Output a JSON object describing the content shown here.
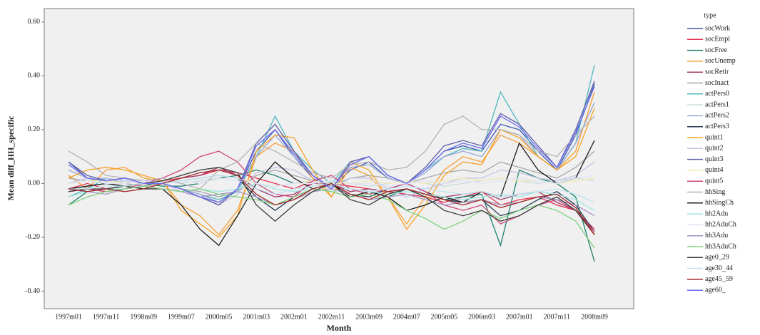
{
  "chart_data": {
    "type": "line",
    "x_label": "Month",
    "y_label": "Mean diff_HH_specific",
    "legend_title": "type",
    "categories": [
      "1997m01",
      null,
      "1997m11",
      null,
      "1998m09",
      null,
      "1999m07",
      null,
      "2000m05",
      null,
      "2001m03",
      null,
      "2002m01",
      null,
      "2002m11",
      null,
      "2003m09",
      null,
      "2004m07",
      null,
      "2005m05",
      null,
      "2006m03",
      null,
      "2007m01",
      null,
      "2007m11",
      null,
      "2008m09"
    ],
    "ylim": [
      -0.465,
      0.65
    ],
    "yticks": [
      {
        "value": -0.4,
        "label": "-0.40"
      },
      {
        "value": -0.2,
        "label": "-0.20"
      },
      {
        "value": 0,
        "label": "0.00"
      },
      {
        "value": 0.2,
        "label": "0.20"
      },
      {
        "value": 0.4,
        "label": "0.40"
      },
      {
        "value": 0.6,
        "label": "0.60"
      }
    ],
    "grid": false,
    "series": [
      {
        "name": "socWork",
        "color": "#3e58ac",
        "values": [
          0.08,
          0.02,
          0.01,
          0.02,
          0.01,
          0.0,
          -0.02,
          -0.05,
          -0.08,
          -0.02,
          0.12,
          0.2,
          0.1,
          0.02,
          -0.02,
          0.05,
          0.08,
          0.02,
          0.0,
          0.05,
          0.12,
          0.14,
          0.12,
          0.22,
          0.2,
          0.12,
          0.05,
          0.18,
          0.37
        ]
      },
      {
        "name": "socEmpl",
        "color": "#e6314e",
        "values": [
          -0.02,
          0.0,
          -0.02,
          -0.01,
          0.0,
          0.01,
          0.02,
          0.03,
          0.05,
          0.04,
          0.02,
          0.0,
          -0.02,
          0.01,
          0.0,
          -0.01,
          -0.02,
          -0.03,
          -0.04,
          -0.05,
          -0.07,
          -0.05,
          -0.03,
          -0.08,
          -0.06,
          -0.05,
          -0.08,
          -0.1,
          -0.17
        ]
      },
      {
        "name": "socFree",
        "color": "#1d7f6e",
        "values": [
          -0.08,
          -0.03,
          -0.02,
          -0.01,
          0.0,
          -0.01,
          -0.01,
          0.0,
          0.02,
          0.03,
          0.05,
          0.03,
          0.0,
          0.01,
          0.0,
          -0.02,
          -0.03,
          -0.05,
          -0.02,
          -0.04,
          -0.06,
          -0.05,
          -0.04,
          -0.23,
          0.05,
          0.02,
          0.0,
          -0.05,
          -0.29
        ]
      },
      {
        "name": "socUnemp",
        "color": "#f5a13a",
        "values": [
          0.03,
          -0.02,
          0.05,
          0.06,
          0.02,
          0.01,
          -0.08,
          -0.12,
          -0.19,
          -0.1,
          0.1,
          0.15,
          0.12,
          0.02,
          -0.05,
          0.06,
          0.03,
          -0.05,
          -0.15,
          -0.05,
          0.05,
          0.1,
          0.08,
          0.18,
          0.15,
          0.1,
          0.05,
          0.12,
          0.34
        ]
      },
      {
        "name": "socRetir",
        "color": "#a3396b",
        "values": [
          -0.03,
          -0.02,
          -0.03,
          -0.02,
          -0.01,
          0.0,
          0.02,
          0.03,
          0.06,
          0.03,
          -0.02,
          -0.05,
          -0.04,
          0.0,
          0.0,
          -0.03,
          -0.02,
          -0.03,
          -0.02,
          -0.04,
          -0.05,
          -0.04,
          -0.03,
          -0.06,
          -0.04,
          -0.03,
          -0.07,
          -0.1,
          -0.19
        ]
      },
      {
        "name": "socInact",
        "color": "#a8a8a8",
        "values": [
          0.02,
          0.01,
          0.02,
          0.0,
          -0.01,
          0.0,
          -0.02,
          -0.03,
          -0.05,
          -0.03,
          0.03,
          0.05,
          0.03,
          0.01,
          -0.01,
          0.02,
          0.03,
          0.02,
          0.0,
          0.02,
          0.04,
          0.05,
          0.04,
          0.08,
          0.06,
          0.04,
          0.02,
          0.06,
          0.12
        ]
      },
      {
        "name": "actPers0",
        "color": "#4fb8c0",
        "values": [
          -0.05,
          -0.02,
          0.02,
          0.01,
          0.0,
          0.0,
          -0.02,
          -0.04,
          -0.06,
          -0.03,
          0.1,
          0.25,
          0.12,
          0.05,
          0.0,
          0.08,
          0.1,
          0.03,
          0.0,
          0.05,
          0.1,
          0.13,
          0.12,
          0.34,
          0.22,
          0.1,
          0.05,
          0.15,
          0.44
        ]
      },
      {
        "name": "actPers1",
        "color": "#c9dbe0",
        "values": [
          0.0,
          0.01,
          0.0,
          0.01,
          0.0,
          0.01,
          0.0,
          0.01,
          0.02,
          0.01,
          0.0,
          -0.01,
          0.0,
          0.01,
          0.0,
          0.0,
          -0.01,
          0.0,
          0.01,
          0.0,
          -0.01,
          0.0,
          0.01,
          0.02,
          0.01,
          0.0,
          0.01,
          0.02,
          0.01
        ]
      },
      {
        "name": "actPers2",
        "color": "#9aa7d6",
        "values": [
          0.05,
          0.02,
          0.01,
          0.02,
          0.0,
          0.0,
          -0.02,
          -0.04,
          -0.07,
          -0.02,
          0.1,
          0.18,
          0.1,
          0.03,
          -0.01,
          0.06,
          0.07,
          0.02,
          0.0,
          0.04,
          0.1,
          0.12,
          0.1,
          0.2,
          0.18,
          0.1,
          0.05,
          0.15,
          0.3
        ]
      },
      {
        "name": "actPers3",
        "color": "#2a3a55",
        "values": [
          -0.02,
          -0.01,
          0.0,
          -0.01,
          0.0,
          0.0,
          0.01,
          0.02,
          0.03,
          0.02,
          -0.05,
          -0.1,
          -0.05,
          -0.02,
          0.0,
          -0.04,
          -0.05,
          -0.02,
          0.0,
          -0.03,
          -0.06,
          -0.07,
          -0.06,
          -0.12,
          -0.1,
          -0.06,
          -0.03,
          -0.08,
          -0.18
        ]
      },
      {
        "name": "quint1",
        "color": "#f6a323",
        "values": [
          0.02,
          0.05,
          0.06,
          0.05,
          0.03,
          0.01,
          -0.1,
          -0.15,
          -0.2,
          -0.12,
          0.12,
          0.18,
          0.17,
          0.05,
          -0.05,
          0.08,
          0.05,
          -0.05,
          -0.17,
          -0.08,
          0.03,
          0.08,
          0.07,
          0.2,
          0.17,
          0.1,
          0.05,
          0.1,
          0.28
        ]
      },
      {
        "name": "quint2",
        "color": "#c4c3e6",
        "values": [
          0.0,
          0.02,
          0.02,
          0.01,
          0.0,
          0.0,
          -0.03,
          -0.05,
          -0.08,
          -0.04,
          0.04,
          0.06,
          0.05,
          0.01,
          -0.02,
          0.02,
          0.02,
          -0.02,
          -0.05,
          -0.02,
          0.0,
          0.02,
          0.02,
          0.05,
          0.04,
          0.02,
          0.01,
          0.03,
          0.08
        ]
      },
      {
        "name": "quint3",
        "color": "#5d5fa8",
        "values": [
          0.08,
          0.03,
          0.01,
          0.02,
          0.0,
          0.0,
          -0.02,
          -0.05,
          -0.08,
          -0.02,
          0.15,
          0.22,
          0.12,
          0.03,
          -0.02,
          0.08,
          0.1,
          0.03,
          0.0,
          0.06,
          0.14,
          0.16,
          0.14,
          0.26,
          0.22,
          0.14,
          0.06,
          0.2,
          0.38
        ]
      },
      {
        "name": "quint4",
        "color": "#f1e9b0",
        "values": [
          0.0,
          0.01,
          0.01,
          0.0,
          0.01,
          0.0,
          0.01,
          0.02,
          0.03,
          0.02,
          0.0,
          -0.01,
          0.0,
          0.01,
          0.0,
          0.0,
          0.01,
          0.0,
          0.01,
          0.0,
          0.01,
          0.02,
          0.01,
          0.02,
          0.01,
          0.01,
          0.0,
          0.01,
          0.02
        ]
      },
      {
        "name": "quint5",
        "color": "#d1467b",
        "values": [
          -0.03,
          -0.02,
          -0.03,
          -0.02,
          0.0,
          0.02,
          0.05,
          0.1,
          0.12,
          0.08,
          0.0,
          -0.04,
          -0.05,
          0.01,
          0.03,
          -0.02,
          -0.04,
          -0.02,
          0.0,
          -0.03,
          -0.08,
          -0.1,
          -0.08,
          -0.15,
          -0.12,
          -0.08,
          -0.06,
          -0.1,
          -0.18
        ]
      },
      {
        "name": "hhSing",
        "color": "#b3b3b3",
        "values": [
          0.12,
          0.08,
          0.03,
          0.02,
          0.01,
          0.02,
          0.0,
          -0.02,
          0.05,
          0.08,
          0.15,
          0.12,
          0.08,
          0.04,
          0.02,
          0.07,
          0.08,
          0.05,
          0.06,
          0.12,
          0.22,
          0.25,
          0.2,
          0.2,
          0.18,
          0.12,
          0.1,
          0.18,
          0.25
        ]
      },
      {
        "name": "hhSingCh",
        "color": "#1b1b1b",
        "values": [
          -0.02,
          -0.01,
          0.0,
          -0.01,
          -0.02,
          -0.02,
          -0.08,
          -0.17,
          -0.23,
          -0.12,
          0.0,
          0.08,
          0.02,
          -0.02,
          0.0,
          -0.05,
          -0.03,
          -0.05,
          -0.1,
          -0.08,
          -0.05,
          -0.07,
          -0.03,
          -0.05,
          0.15,
          0.05,
          0.0,
          0.02,
          0.16
        ]
      },
      {
        "name": "hh2Adu",
        "color": "#9fe6e0",
        "values": [
          -0.05,
          -0.03,
          -0.02,
          -0.02,
          -0.01,
          -0.02,
          -0.03,
          -0.02,
          -0.03,
          -0.02,
          0.0,
          -0.02,
          -0.03,
          -0.02,
          -0.03,
          -0.02,
          -0.03,
          -0.04,
          -0.03,
          -0.04,
          -0.05,
          -0.06,
          -0.05,
          -0.04,
          -0.05,
          -0.03,
          -0.04,
          -0.06,
          -0.1
        ]
      },
      {
        "name": "hh2AduCh",
        "color": "#dfe4f5",
        "values": [
          0.0,
          0.01,
          0.0,
          0.0,
          0.01,
          0.0,
          0.01,
          0.0,
          0.02,
          0.01,
          0.0,
          -0.01,
          0.0,
          0.0,
          0.01,
          0.0,
          0.0,
          -0.01,
          0.0,
          0.01,
          0.0,
          0.01,
          0.0,
          0.01,
          0.02,
          0.01,
          0.0,
          0.02,
          0.03
        ]
      },
      {
        "name": "hh3Adu",
        "color": "#a396c4",
        "values": [
          -0.02,
          -0.03,
          -0.04,
          -0.02,
          -0.01,
          -0.02,
          -0.03,
          -0.05,
          -0.04,
          -0.03,
          -0.05,
          -0.08,
          -0.06,
          -0.03,
          -0.02,
          -0.04,
          -0.06,
          -0.05,
          -0.04,
          -0.06,
          -0.08,
          -0.07,
          -0.06,
          -0.08,
          -0.07,
          -0.05,
          -0.06,
          -0.08,
          -0.12
        ]
      },
      {
        "name": "hh3AduCh",
        "color": "#7fd17f",
        "values": [
          -0.08,
          -0.05,
          -0.03,
          -0.02,
          -0.01,
          -0.02,
          -0.03,
          -0.02,
          -0.04,
          -0.05,
          -0.06,
          -0.08,
          -0.05,
          -0.02,
          -0.03,
          -0.05,
          -0.04,
          -0.06,
          -0.1,
          -0.13,
          -0.17,
          -0.14,
          -0.1,
          -0.13,
          -0.1,
          -0.08,
          -0.1,
          -0.14,
          -0.24
        ]
      },
      {
        "name": "age0_29",
        "color": "#3c3c3c",
        "values": [
          -0.03,
          -0.02,
          -0.02,
          -0.01,
          0.0,
          0.01,
          0.03,
          0.05,
          0.06,
          0.04,
          -0.08,
          -0.14,
          -0.08,
          -0.03,
          0.0,
          -0.06,
          -0.08,
          -0.04,
          -0.02,
          -0.05,
          -0.1,
          -0.12,
          -0.1,
          -0.14,
          -0.12,
          -0.08,
          -0.05,
          -0.1,
          -0.19
        ]
      },
      {
        "name": "age30_44",
        "color": "#bfe4f3",
        "values": [
          -0.02,
          -0.02,
          -0.01,
          -0.01,
          0.0,
          0.0,
          0.01,
          0.02,
          0.03,
          0.02,
          -0.02,
          -0.04,
          -0.02,
          -0.01,
          0.0,
          -0.02,
          -0.03,
          -0.02,
          -0.01,
          -0.02,
          -0.03,
          -0.04,
          -0.03,
          -0.05,
          -0.04,
          -0.03,
          -0.02,
          -0.04,
          -0.07
        ]
      },
      {
        "name": "age45_59",
        "color": "#a32828",
        "values": [
          -0.02,
          -0.03,
          -0.02,
          -0.03,
          -0.02,
          0.0,
          0.02,
          0.04,
          0.05,
          0.03,
          -0.04,
          -0.08,
          -0.06,
          -0.02,
          0.0,
          -0.04,
          -0.06,
          -0.03,
          -0.02,
          -0.04,
          -0.06,
          -0.08,
          -0.06,
          -0.09,
          -0.07,
          -0.05,
          -0.04,
          -0.09,
          -0.19
        ]
      },
      {
        "name": "age60_",
        "color": "#6a6aef",
        "values": [
          0.07,
          0.02,
          0.01,
          0.02,
          0.0,
          0.0,
          -0.02,
          -0.05,
          -0.07,
          -0.02,
          0.14,
          0.2,
          0.11,
          0.03,
          -0.02,
          0.07,
          0.1,
          0.03,
          0.0,
          0.05,
          0.12,
          0.15,
          0.13,
          0.25,
          0.21,
          0.13,
          0.06,
          0.19,
          0.36
        ]
      }
    ]
  }
}
